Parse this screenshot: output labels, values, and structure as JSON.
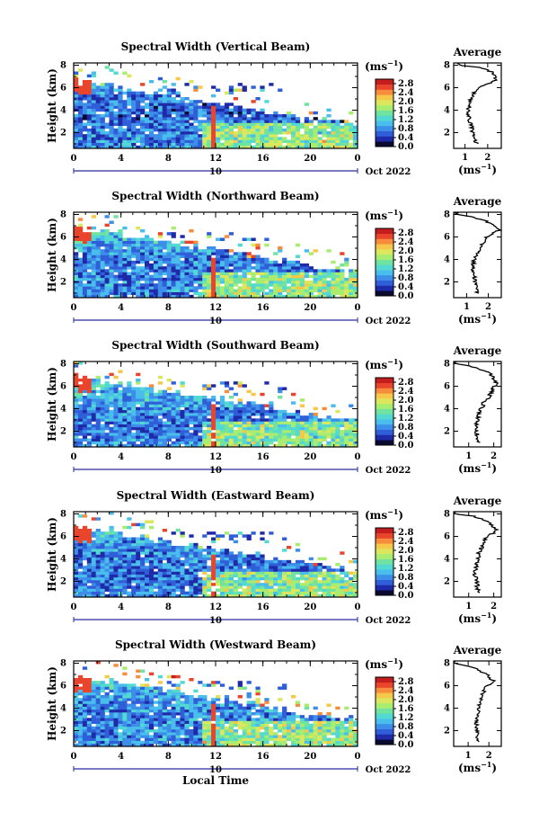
{
  "common": {
    "ylabel": "Height (km)",
    "y_ticks": [
      "2",
      "4",
      "6",
      "8"
    ],
    "x_ticks": [
      "0",
      "4",
      "8",
      "12",
      "16",
      "20",
      "0"
    ],
    "date_day": "10",
    "date_month": "Oct 2022",
    "xlabel": "Local Time",
    "unit": "(ms",
    "unit_exp": "−1",
    "unit_close": ")",
    "cbar_ticks": [
      "2.8",
      "2.4",
      "2.0",
      "1.6",
      "1.2",
      "0.8",
      "0.4",
      "0.0"
    ],
    "avg_title": "Average"
  },
  "colors": {
    "background": "#ffffff",
    "scale": [
      "#0a0a30",
      "#1f2aa8",
      "#2f5ed8",
      "#3c8ee8",
      "#49bdec",
      "#52d9d2",
      "#71e3a0",
      "#a8ec70",
      "#dde75e",
      "#f6c84a",
      "#f78d3c",
      "#e9452c",
      "#c41d1d"
    ]
  },
  "panels": [
    {
      "title": "Spectral Width (Vertical Beam)",
      "avg_xticks": [
        "1",
        "2"
      ],
      "avg_xlim": [
        0.5,
        2.6
      ]
    },
    {
      "title": "Spectral Width (Northward Beam)",
      "avg_xticks": [
        "1",
        "2"
      ],
      "avg_xlim": [
        0.4,
        2.6
      ]
    },
    {
      "title": "Spectral Width (Southward Beam)",
      "avg_xticks": [
        "1",
        "2"
      ],
      "avg_xlim": [
        0.4,
        2.3
      ]
    },
    {
      "title": "Spectral Width (Eastward Beam)",
      "avg_xticks": [
        "1",
        "2"
      ],
      "avg_xlim": [
        0.4,
        2.3
      ]
    },
    {
      "title": "Spectral Width (Westward Beam)",
      "avg_xticks": [
        "1",
        "2"
      ],
      "avg_xlim": [
        0.3,
        2.6
      ]
    }
  ],
  "chart_data": [
    {
      "type": "heatmap",
      "title": "Spectral Width (Vertical Beam)",
      "x_range_hours": [
        0,
        24
      ],
      "y_range_km": [
        0.6,
        8.2
      ],
      "color_range_ms": [
        0.0,
        3.0
      ],
      "colorbar_unit": "ms^-1"
    },
    {
      "type": "line",
      "title": "Average",
      "panel": "Vertical Beam",
      "xlabel": "(ms^-1)",
      "ylabel": "Height (km)",
      "xlim": [
        0.5,
        2.6
      ],
      "ylim": [
        0.6,
        8.2
      ],
      "height_km": [
        1.0,
        1.5,
        2.0,
        2.5,
        3.0,
        3.5,
        4.0,
        4.5,
        5.0,
        5.5,
        6.0,
        6.3,
        6.6,
        7.0,
        7.4,
        7.8,
        8.0
      ],
      "width_ms": [
        1.5,
        1.4,
        1.35,
        1.3,
        1.2,
        1.15,
        1.15,
        1.2,
        1.25,
        1.4,
        1.6,
        1.9,
        2.3,
        2.4,
        2.2,
        1.6,
        0.7
      ]
    },
    {
      "type": "heatmap",
      "title": "Spectral Width (Northward Beam)",
      "x_range_hours": [
        0,
        24
      ],
      "y_range_km": [
        0.6,
        8.2
      ],
      "color_range_ms": [
        0.0,
        3.0
      ],
      "colorbar_unit": "ms^-1"
    },
    {
      "type": "line",
      "title": "Average",
      "panel": "Northward Beam",
      "xlabel": "(ms^-1)",
      "ylabel": "Height (km)",
      "xlim": [
        0.4,
        2.6
      ],
      "ylim": [
        0.6,
        8.2
      ],
      "height_km": [
        1.0,
        1.5,
        2.0,
        2.5,
        3.0,
        3.5,
        4.0,
        4.5,
        5.0,
        5.5,
        6.0,
        6.3,
        6.6,
        7.0,
        7.4,
        7.8,
        8.0
      ],
      "width_ms": [
        1.5,
        1.45,
        1.4,
        1.35,
        1.3,
        1.3,
        1.35,
        1.45,
        1.6,
        1.8,
        1.9,
        2.2,
        2.5,
        2.3,
        1.9,
        1.2,
        0.5
      ]
    },
    {
      "type": "heatmap",
      "title": "Spectral Width (Southward Beam)",
      "x_range_hours": [
        0,
        24
      ],
      "y_range_km": [
        0.6,
        8.2
      ],
      "color_range_ms": [
        0.0,
        3.0
      ],
      "colorbar_unit": "ms^-1"
    },
    {
      "type": "line",
      "title": "Average",
      "panel": "Southward Beam",
      "xlabel": "(ms^-1)",
      "ylabel": "Height (km)",
      "xlim": [
        0.4,
        2.3
      ],
      "ylim": [
        0.6,
        8.2
      ],
      "height_km": [
        1.0,
        1.5,
        2.0,
        2.5,
        3.0,
        3.5,
        4.0,
        4.5,
        5.0,
        5.5,
        6.0,
        6.3,
        6.6,
        7.0,
        7.4,
        7.8,
        8.0
      ],
      "width_ms": [
        1.4,
        1.35,
        1.3,
        1.3,
        1.35,
        1.4,
        1.5,
        1.6,
        1.8,
        1.9,
        2.0,
        2.1,
        2.05,
        1.9,
        1.6,
        1.0,
        0.5
      ]
    },
    {
      "type": "heatmap",
      "title": "Spectral Width (Eastward Beam)",
      "x_range_hours": [
        0,
        24
      ],
      "y_range_km": [
        0.6,
        8.2
      ],
      "color_range_ms": [
        0.0,
        3.0
      ],
      "colorbar_unit": "ms^-1"
    },
    {
      "type": "line",
      "title": "Average",
      "panel": "Eastward Beam",
      "xlabel": "(ms^-1)",
      "ylabel": "Height (km)",
      "xlim": [
        0.4,
        2.3
      ],
      "ylim": [
        0.6,
        8.2
      ],
      "height_km": [
        1.0,
        1.5,
        2.0,
        2.5,
        3.0,
        3.5,
        4.0,
        4.5,
        5.0,
        5.5,
        6.0,
        6.3,
        6.6,
        7.0,
        7.4,
        7.8,
        8.0
      ],
      "width_ms": [
        1.4,
        1.35,
        1.3,
        1.25,
        1.25,
        1.3,
        1.35,
        1.4,
        1.5,
        1.6,
        1.7,
        2.0,
        2.1,
        1.9,
        1.7,
        1.2,
        0.5
      ]
    },
    {
      "type": "heatmap",
      "title": "Spectral Width (Westward Beam)",
      "x_range_hours": [
        0,
        24
      ],
      "y_range_km": [
        0.6,
        8.2
      ],
      "color_range_ms": [
        0.0,
        3.0
      ],
      "colorbar_unit": "ms^-1"
    },
    {
      "type": "line",
      "title": "Average",
      "panel": "Westward Beam",
      "xlabel": "(ms^-1)",
      "ylabel": "Height (km)",
      "xlim": [
        0.3,
        2.6
      ],
      "ylim": [
        0.6,
        8.2
      ],
      "height_km": [
        1.0,
        1.5,
        2.0,
        2.5,
        3.0,
        3.5,
        4.0,
        4.5,
        5.0,
        5.5,
        6.0,
        6.3,
        6.6,
        7.0,
        7.4,
        7.8,
        8.0
      ],
      "width_ms": [
        1.5,
        1.45,
        1.45,
        1.4,
        1.4,
        1.45,
        1.5,
        1.55,
        1.65,
        1.75,
        1.9,
        2.3,
        2.1,
        1.9,
        1.5,
        0.9,
        0.4
      ]
    }
  ]
}
